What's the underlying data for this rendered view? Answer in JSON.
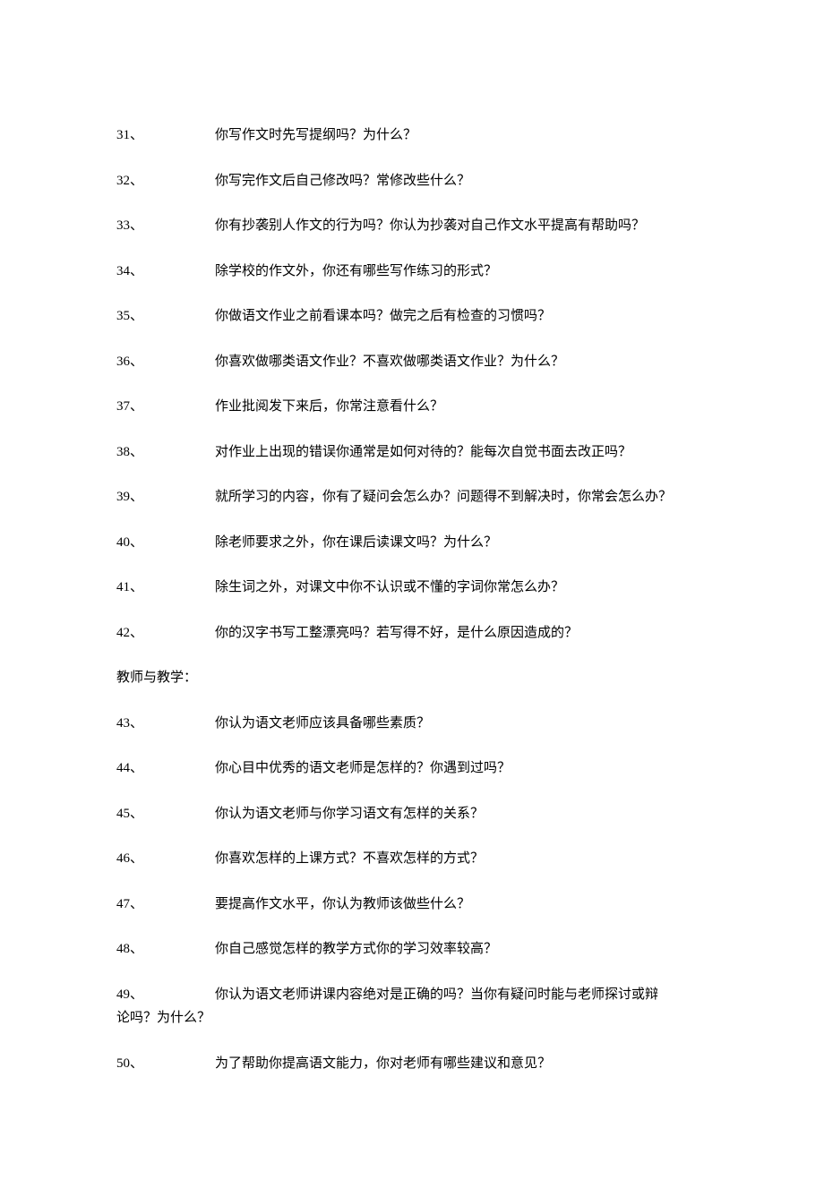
{
  "questions_block1": [
    {
      "num": "31、",
      "text": "你写作文时先写提纲吗？为什么？"
    },
    {
      "num": "32、",
      "text": "你写完作文后自己修改吗？常修改些什么？"
    },
    {
      "num": "33、",
      "text": "你有抄袭别人作文的行为吗？你认为抄袭对自己作文水平提高有帮助吗？"
    },
    {
      "num": "34、",
      "text": "除学校的作文外，你还有哪些写作练习的形式？"
    },
    {
      "num": "35、",
      "text": "你做语文作业之前看课本吗？做完之后有检查的习惯吗？"
    },
    {
      "num": "36、",
      "text": "你喜欢做哪类语文作业？不喜欢做哪类语文作业？为什么？"
    },
    {
      "num": "37、",
      "text": "作业批阅发下来后，你常注意看什么？"
    },
    {
      "num": "38、",
      "text": "对作业上出现的错误你通常是如何对待的？能每次自觉书面去改正吗？"
    },
    {
      "num": "39、",
      "text": "就所学习的内容，你有了疑问会怎么办？问题得不到解决时，你常会怎么办？"
    },
    {
      "num": "40、",
      "text": "除老师要求之外，你在课后读课文吗？为什么？"
    },
    {
      "num": "41、",
      "text": "除生词之外，对课文中你不认识或不懂的字词你常怎么办？"
    },
    {
      "num": "42、",
      "text": "你的汉字书写工整漂亮吗？若写得不好，是什么原因造成的？"
    }
  ],
  "section_header": "教师与教学：",
  "questions_block2": [
    {
      "num": "43、",
      "text": "你认为语文老师应该具备哪些素质？"
    },
    {
      "num": "44、",
      "text": "你心目中优秀的语文老师是怎样的？你遇到过吗？"
    },
    {
      "num": "45、",
      "text": "你认为语文老师与你学习语文有怎样的关系？"
    },
    {
      "num": "46、",
      "text": "你喜欢怎样的上课方式？不喜欢怎样的方式？"
    },
    {
      "num": "47、",
      "text": "要提高作文水平，你认为教师该做些什么？"
    },
    {
      "num": "48、",
      "text": "你自己感觉怎样的教学方式你的学习效率较高？"
    }
  ],
  "wrapped_question": {
    "num": "49、",
    "line1": "你认为语文老师讲课内容绝对是正确的吗？当你有疑问时能与老师探讨或辩",
    "line2": "论吗？为什么？"
  },
  "questions_block3": [
    {
      "num": "50、",
      "text": "为了帮助你提高语文能力，你对老师有哪些建议和意见？"
    }
  ]
}
